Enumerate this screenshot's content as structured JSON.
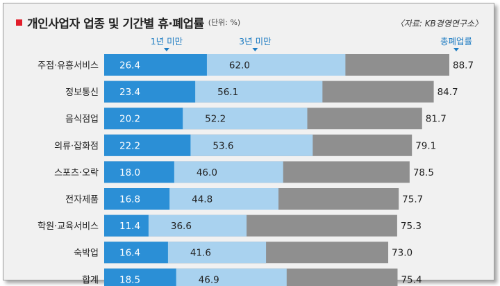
{
  "title": "개인사업자 업종 및 기간별 휴·폐업률",
  "unit": "(단위: %)",
  "source": "〈자료: KB경영연구소〉",
  "colors": {
    "under_1yr": "#2b8fd6",
    "under_3yr": "#a9d2ef",
    "total": "#8f8f8f",
    "header_text": "#1e7cc2"
  },
  "chart_data": {
    "type": "bar",
    "orientation": "horizontal",
    "stacked_overlay": true,
    "categories": [
      "주점·유흥서비스",
      "정보통신",
      "음식점업",
      "의류·잡화점",
      "스포츠·오락",
      "전자제품",
      "학원·교육서비스",
      "숙박업",
      "합계"
    ],
    "series": [
      {
        "name": "1년 미만",
        "values": [
          26.4,
          23.4,
          20.2,
          22.2,
          18.0,
          16.8,
          11.4,
          16.4,
          18.5
        ]
      },
      {
        "name": "3년 미만",
        "values": [
          62.0,
          56.1,
          52.2,
          53.6,
          46.0,
          44.8,
          36.6,
          41.6,
          46.9
        ]
      },
      {
        "name": "총폐업률",
        "values": [
          88.7,
          84.7,
          81.7,
          79.1,
          78.5,
          75.7,
          75.3,
          73.0,
          75.4
        ]
      }
    ],
    "value_labels": [
      [
        "26.4",
        "62.0",
        "88.7"
      ],
      [
        "23.4",
        "56.1",
        "84.7"
      ],
      [
        "20.2",
        "52.2",
        "81.7"
      ],
      [
        "22.2",
        "53.6",
        "79.1"
      ],
      [
        "18.0",
        "46.0",
        "78.5"
      ],
      [
        "16.8",
        "44.8",
        "75.7"
      ],
      [
        "11.4",
        "36.6",
        "75.3"
      ],
      [
        "16.4",
        "41.6",
        "73.0"
      ],
      [
        "18.5",
        "46.9",
        "75.4"
      ]
    ],
    "xlim": [
      0,
      88.7
    ],
    "grid": false,
    "legend": "top"
  }
}
